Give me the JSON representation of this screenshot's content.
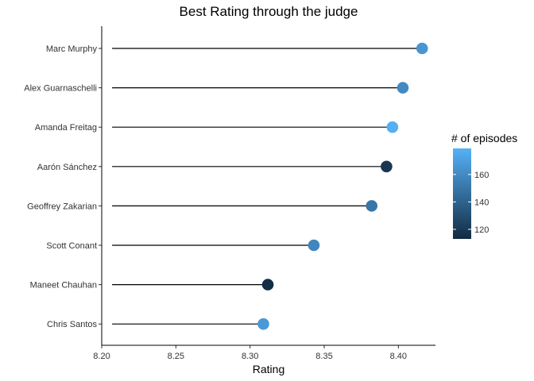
{
  "chart_data": {
    "type": "lollipop",
    "title": "Best Rating through the judge",
    "xlabel": "Rating",
    "ylabel": "",
    "xlim": [
      8.2,
      8.425
    ],
    "x_ticks": [
      "8.20",
      "8.25",
      "8.30",
      "8.35",
      "8.40"
    ],
    "segment_start": 8.207,
    "categories": [
      "Marc Murphy",
      "Alex Guarnaschelli",
      "Amanda Freitag",
      "Aarón Sánchez",
      "Geoffrey Zakarian",
      "Scott Conant",
      "Maneet Chauhan",
      "Chris Santos"
    ],
    "values": [
      8.416,
      8.403,
      8.396,
      8.392,
      8.382,
      8.343,
      8.312,
      8.309
    ],
    "color_values": [
      165,
      160,
      178,
      118,
      150,
      158,
      114,
      167
    ],
    "legend": {
      "title": "# of episodes",
      "range": [
        113,
        179
      ],
      "ticks": [
        "120",
        "140",
        "160"
      ],
      "low_color": "#132B43",
      "high_color": "#56B1F7"
    },
    "grid": false
  }
}
